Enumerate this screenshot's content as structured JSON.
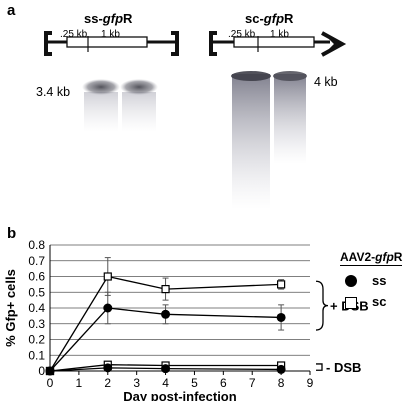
{
  "panel_a": {
    "letter": "a",
    "ss": {
      "title_plain_prefix": "ss-",
      "title_italic": "gfp",
      "title_plain_suffix": "R",
      "tick_label_1": ".25 kb",
      "tick_label_2": "1 kb",
      "band_size": "3.4 kb"
    },
    "sc": {
      "title_plain_prefix": "sc-",
      "title_italic": "gfp",
      "title_plain_suffix": "R",
      "tick_label_1": ".25 kb",
      "tick_label_2": "1 kb",
      "band_size": "4 kb"
    }
  },
  "panel_b": {
    "letter": "b",
    "legend": {
      "title_prefix": "AAV2-",
      "title_italic": "gfp",
      "title_suffix": "R",
      "ss_label": "ss",
      "sc_label": "sc"
    },
    "annotations": {
      "plus_dsb": "+ DSB",
      "minus_dsb": "- DSB"
    }
  },
  "chart_data": {
    "type": "line",
    "xlabel": "Day post-infection",
    "ylabel": "% Gfp+ cells",
    "xlim": [
      0,
      9
    ],
    "ylim": [
      0,
      0.8
    ],
    "xticks": [
      0,
      1,
      2,
      3,
      4,
      5,
      6,
      7,
      8,
      9
    ],
    "yticks": [
      0,
      0.1,
      0.2,
      0.3,
      0.4,
      0.5,
      0.6,
      0.7,
      0.8
    ],
    "ytick_labels": [
      "0",
      "0.1",
      "0.2",
      "0.3",
      "0.4",
      "0.5",
      "0.6",
      "0.7",
      "0.8"
    ],
    "grid": "horizontal",
    "series": [
      {
        "name": "sc",
        "group": "+ DSB",
        "marker": "open-square",
        "x": [
          0,
          2,
          4,
          8
        ],
        "y": [
          0,
          0.6,
          0.52,
          0.55
        ],
        "err": [
          0,
          0.12,
          0.07,
          0.03
        ]
      },
      {
        "name": "ss",
        "group": "+ DSB",
        "marker": "filled-circle",
        "x": [
          0,
          2,
          4,
          8
        ],
        "y": [
          0,
          0.4,
          0.36,
          0.34
        ],
        "err": [
          0,
          0.1,
          0.06,
          0.08
        ]
      },
      {
        "name": "sc",
        "group": "- DSB",
        "marker": "open-square",
        "x": [
          0,
          2,
          4,
          8
        ],
        "y": [
          0,
          0.04,
          0.035,
          0.035
        ],
        "err": [
          0,
          0.01,
          0.01,
          0.01
        ]
      },
      {
        "name": "ss",
        "group": "- DSB",
        "marker": "filled-circle",
        "x": [
          0,
          2,
          4,
          8
        ],
        "y": [
          0,
          0.02,
          0.015,
          0.01
        ],
        "err": [
          0,
          0.005,
          0.005,
          0.005
        ]
      }
    ]
  }
}
